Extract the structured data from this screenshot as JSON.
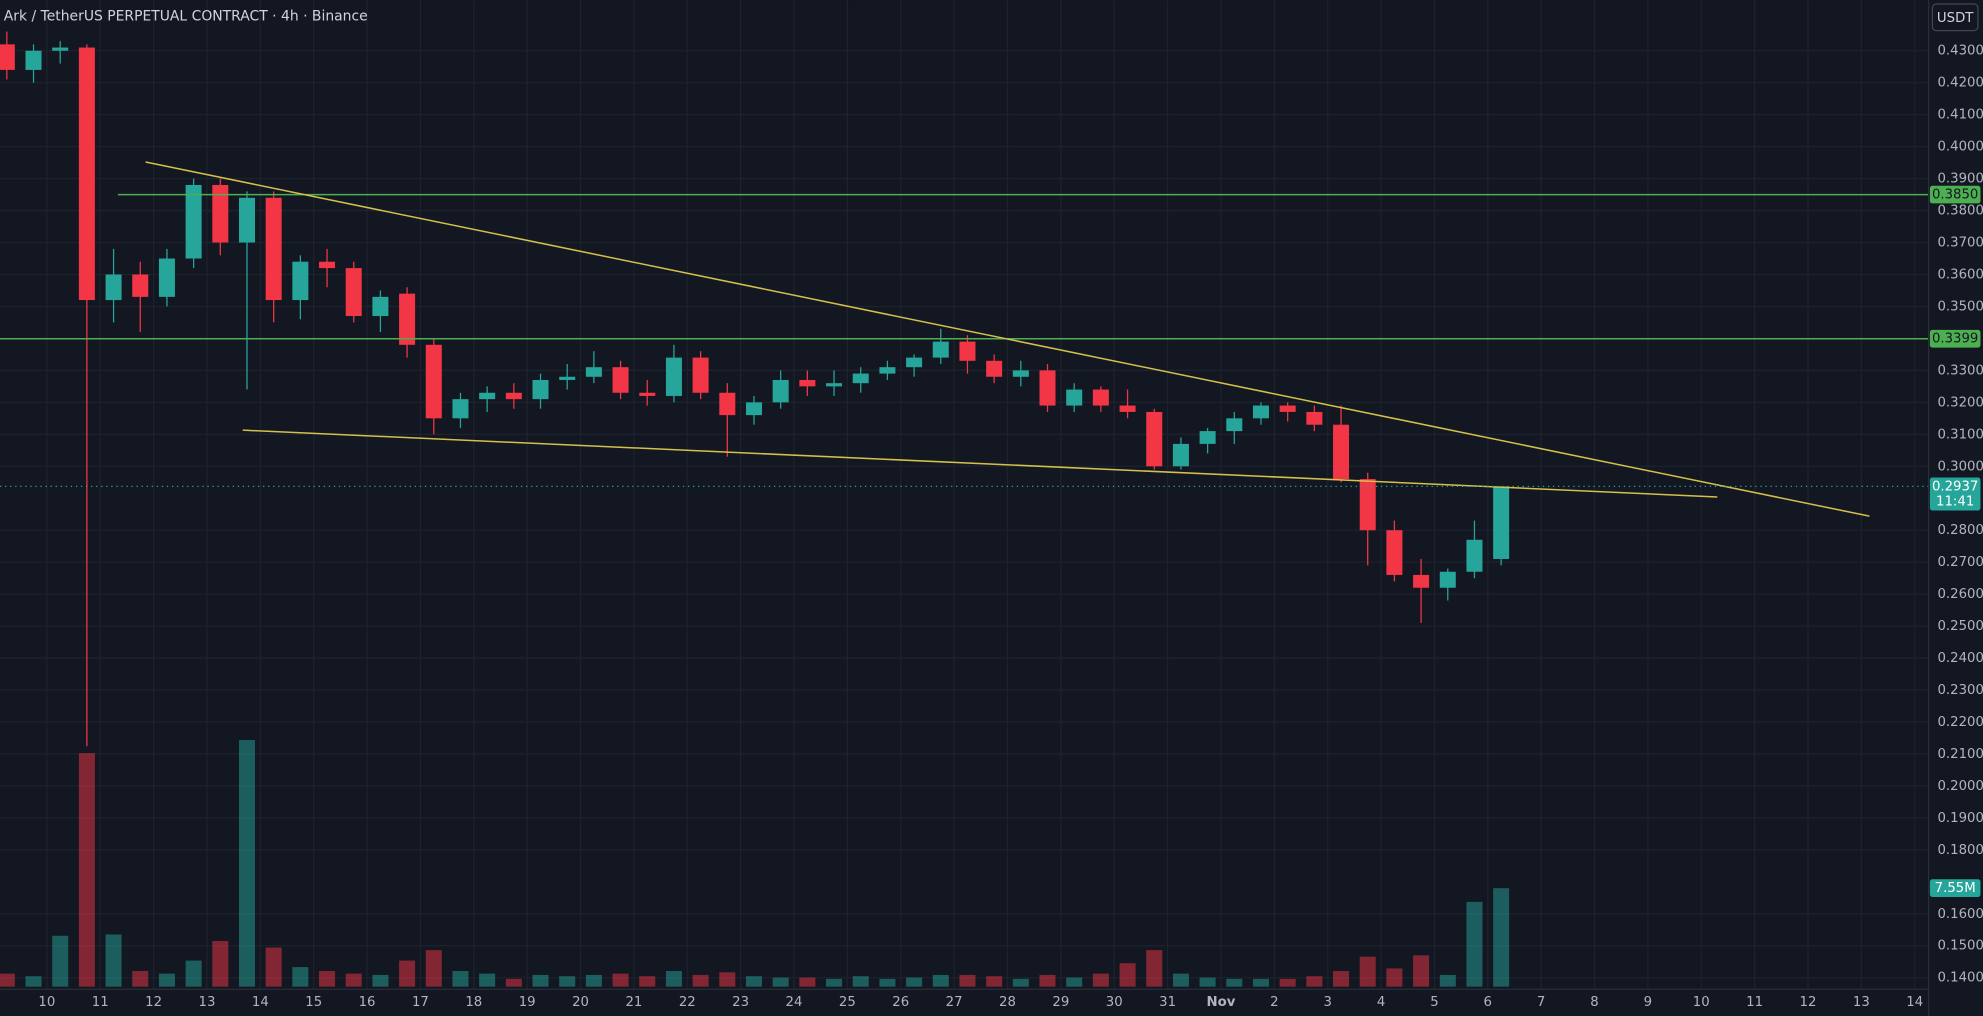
{
  "chart_data": {
    "type": "candlestick",
    "title": "Ark / TetherUS PERPETUAL CONTRACT · 4h · Binance",
    "currency": "USDT",
    "up_color": "#26a69a",
    "down_color": "#f23645",
    "grid": true,
    "xlim": [
      9.122,
      45.26
    ],
    "ylim": [
      0.1364,
      0.4458
    ],
    "xticks": [
      10,
      11,
      12,
      13,
      14,
      15,
      16,
      17,
      18,
      19,
      20,
      21,
      22,
      23,
      24,
      25,
      26,
      27,
      28,
      29,
      30,
      31,
      {
        "value": 32,
        "label": "Nov"
      },
      {
        "value": 33,
        "label": "2"
      },
      {
        "value": 34,
        "label": "3"
      },
      {
        "value": 35,
        "label": "4"
      },
      {
        "value": 36,
        "label": "5"
      },
      {
        "value": 37,
        "label": "6"
      },
      {
        "value": 38,
        "label": "7"
      },
      {
        "value": 39,
        "label": "8"
      },
      {
        "value": 40,
        "label": "9"
      },
      {
        "value": 41,
        "label": "10"
      },
      {
        "value": 42,
        "label": "11"
      },
      {
        "value": 43,
        "label": "12"
      },
      {
        "value": 44,
        "label": "13"
      },
      {
        "value": 45,
        "label": "14"
      }
    ],
    "yticks": [
      {
        "value": 0.14,
        "label": "0.1400"
      },
      {
        "value": 0.15,
        "label": "0.1500"
      },
      {
        "value": 0.16,
        "label": "0.1600"
      },
      {
        "value": 0.18,
        "label": "0.1800"
      },
      {
        "value": 0.19,
        "label": "0.1900"
      },
      {
        "value": 0.2,
        "label": "0.2000"
      },
      {
        "value": 0.21,
        "label": "0.2100"
      },
      {
        "value": 0.22,
        "label": "0.2200"
      },
      {
        "value": 0.23,
        "label": "0.2300"
      },
      {
        "value": 0.24,
        "label": "0.2400"
      },
      {
        "value": 0.25,
        "label": "0.2500"
      },
      {
        "value": 0.26,
        "label": "0.2600"
      },
      {
        "value": 0.27,
        "label": "0.2700"
      },
      {
        "value": 0.28,
        "label": "0.2800"
      },
      {
        "value": 0.3,
        "label": "0.3000"
      },
      {
        "value": 0.31,
        "label": "0.3100"
      },
      {
        "value": 0.32,
        "label": "0.3200"
      },
      {
        "value": 0.33,
        "label": "0.3300"
      },
      {
        "value": 0.35,
        "label": "0.3500"
      },
      {
        "value": 0.36,
        "label": "0.3600"
      },
      {
        "value": 0.37,
        "label": "0.3700"
      },
      {
        "value": 0.38,
        "label": "0.3800"
      },
      {
        "value": 0.39,
        "label": "0.3900"
      },
      {
        "value": 0.4,
        "label": "0.4000"
      },
      {
        "value": 0.41,
        "label": "0.4100"
      },
      {
        "value": 0.42,
        "label": "0.4200"
      },
      {
        "value": 0.43,
        "label": "0.4300"
      }
    ],
    "x": [
      9.25,
      9.75,
      10.25,
      10.75,
      11.25,
      11.75,
      12.25,
      12.75,
      13.25,
      13.75,
      14.25,
      14.75,
      15.25,
      15.75,
      16.25,
      16.75,
      17.25,
      17.75,
      18.25,
      18.75,
      19.25,
      19.75,
      20.25,
      20.75,
      21.25,
      21.75,
      22.25,
      22.75,
      23.25,
      23.75,
      24.25,
      24.75,
      25.25,
      25.75,
      26.25,
      26.75,
      27.25,
      27.75,
      28.25,
      28.75,
      29.25,
      29.75,
      30.25,
      30.75,
      31.25,
      31.75,
      32.25,
      32.75,
      33.25,
      33.75,
      34.25,
      34.75,
      35.25,
      35.75,
      36.25,
      36.75,
      37.25
    ],
    "open": [
      0.432,
      0.424,
      0.43,
      0.431,
      0.352,
      0.36,
      0.353,
      0.365,
      0.388,
      0.37,
      0.384,
      0.352,
      0.364,
      0.362,
      0.347,
      0.354,
      0.338,
      0.315,
      0.321,
      0.323,
      0.321,
      0.327,
      0.328,
      0.331,
      0.323,
      0.322,
      0.334,
      0.323,
      0.316,
      0.32,
      0.327,
      0.325,
      0.326,
      0.329,
      0.331,
      0.334,
      0.339,
      0.333,
      0.328,
      0.33,
      0.319,
      0.324,
      0.319,
      0.317,
      0.3,
      0.307,
      0.311,
      0.315,
      0.319,
      0.317,
      0.313,
      0.296,
      0.28,
      0.266,
      0.262,
      0.267,
      0.271
    ],
    "high": [
      0.436,
      0.432,
      0.433,
      0.432,
      0.368,
      0.364,
      0.368,
      0.39,
      0.39,
      0.386,
      0.386,
      0.366,
      0.368,
      0.364,
      0.355,
      0.356,
      0.34,
      0.323,
      0.325,
      0.326,
      0.329,
      0.332,
      0.336,
      0.333,
      0.327,
      0.338,
      0.336,
      0.326,
      0.322,
      0.33,
      0.33,
      0.33,
      0.331,
      0.333,
      0.335,
      0.343,
      0.341,
      0.335,
      0.333,
      0.332,
      0.326,
      0.325,
      0.324,
      0.318,
      0.309,
      0.312,
      0.317,
      0.32,
      0.32,
      0.319,
      0.319,
      0.298,
      0.283,
      0.271,
      0.268,
      0.283,
      0.2937
    ],
    "low": [
      0.421,
      0.42,
      0.426,
      0.2124,
      0.345,
      0.342,
      0.35,
      0.362,
      0.366,
      0.324,
      0.345,
      0.346,
      0.356,
      0.345,
      0.342,
      0.334,
      0.31,
      0.312,
      0.317,
      0.318,
      0.318,
      0.324,
      0.326,
      0.321,
      0.319,
      0.32,
      0.321,
      0.303,
      0.313,
      0.318,
      0.322,
      0.322,
      0.323,
      0.327,
      0.328,
      0.332,
      0.329,
      0.326,
      0.325,
      0.317,
      0.317,
      0.317,
      0.315,
      0.299,
      0.299,
      0.304,
      0.307,
      0.313,
      0.314,
      0.311,
      0.295,
      0.269,
      0.264,
      0.251,
      0.258,
      0.265,
      0.269
    ],
    "close": [
      0.424,
      0.43,
      0.431,
      0.352,
      0.36,
      0.353,
      0.365,
      0.388,
      0.37,
      0.384,
      0.352,
      0.364,
      0.362,
      0.347,
      0.353,
      0.338,
      0.315,
      0.321,
      0.323,
      0.321,
      0.327,
      0.328,
      0.331,
      0.323,
      0.322,
      0.334,
      0.323,
      0.316,
      0.32,
      0.327,
      0.325,
      0.326,
      0.329,
      0.331,
      0.334,
      0.339,
      0.333,
      0.328,
      0.33,
      0.319,
      0.324,
      0.319,
      0.317,
      0.3,
      0.307,
      0.311,
      0.315,
      0.319,
      0.317,
      0.313,
      0.296,
      0.28,
      0.266,
      0.262,
      0.267,
      0.277,
      0.2937
    ],
    "volume": [
      1.0,
      0.8,
      3.9,
      17.9,
      4.0,
      1.2,
      1.0,
      2.0,
      3.5,
      18.9,
      3.0,
      1.5,
      1.2,
      1.0,
      0.9,
      2.0,
      2.8,
      1.2,
      1.0,
      0.6,
      0.9,
      0.8,
      0.9,
      1.0,
      0.8,
      1.2,
      0.9,
      1.1,
      0.8,
      0.7,
      0.7,
      0.6,
      0.8,
      0.6,
      0.7,
      0.9,
      0.9,
      0.8,
      0.6,
      0.9,
      0.7,
      1.0,
      1.8,
      2.8,
      1.0,
      0.7,
      0.6,
      0.6,
      0.6,
      0.8,
      1.2,
      2.3,
      1.4,
      2.4,
      0.9,
      6.5,
      7.55
    ],
    "volume_label": "7.55M",
    "levels": [
      {
        "value": 0.385,
        "label": "0.3850",
        "x_start": 11.33,
        "color": "#4caf50"
      },
      {
        "value": 0.3399,
        "label": "0.3399",
        "x_start": 9.122,
        "color": "#4caf50"
      }
    ],
    "trendlines": [
      {
        "x": [
          11.85,
          44.15
        ],
        "y": [
          0.3952,
          0.2844
        ],
        "color": "#d4c04a"
      },
      {
        "x": [
          13.67,
          41.3
        ],
        "y": [
          0.3113,
          0.2904
        ],
        "color": "#d4c04a"
      }
    ],
    "last_price": {
      "value": 0.2937,
      "label": "0.2937",
      "countdown": "11:41"
    }
  }
}
